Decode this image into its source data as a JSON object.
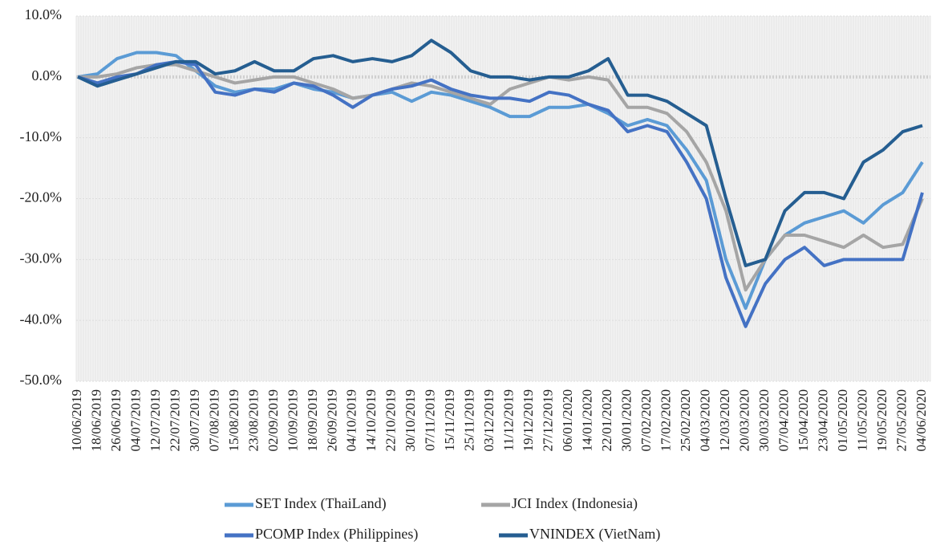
{
  "chart_data": {
    "type": "line",
    "categories": [
      "10/06/2019",
      "18/06/2019",
      "26/06/2019",
      "04/07/2019",
      "12/07/2019",
      "22/07/2019",
      "30/07/2019",
      "07/08/2019",
      "15/08/2019",
      "23/08/2019",
      "02/09/2019",
      "10/09/2019",
      "18/09/2019",
      "26/09/2019",
      "04/10/2019",
      "14/10/2019",
      "22/10/2019",
      "30/10/2019",
      "07/11/2019",
      "15/11/2019",
      "25/11/2019",
      "03/12/2019",
      "11/12/2019",
      "19/12/2019",
      "27/12/2019",
      "06/01/2020",
      "14/01/2020",
      "22/01/2020",
      "30/01/2020",
      "07/02/2020",
      "17/02/2020",
      "25/02/2020",
      "04/03/2020",
      "12/03/2020",
      "20/03/2020",
      "30/03/2020",
      "07/04/2020",
      "15/04/2020",
      "23/04/2020",
      "01/05/2020",
      "11/05/2020",
      "19/05/2020",
      "27/05/2020",
      "04/06/2020"
    ],
    "series": [
      {
        "name": "SET Index (ThaiLand)",
        "color": "#5b9bd5",
        "values": [
          0,
          0.5,
          3,
          4,
          4,
          3.5,
          1,
          -1.5,
          -2.5,
          -2,
          -2,
          -1,
          -2,
          -2.5,
          -3.5,
          -3,
          -2.5,
          -4,
          -2.5,
          -3,
          -4,
          -5,
          -6.5,
          -6.5,
          -5,
          -5,
          -4.5,
          -6,
          -8,
          -7,
          -8,
          -12,
          -17,
          -30,
          -38,
          -30,
          -26,
          -24,
          -23,
          -22,
          -24,
          -21,
          -19,
          -14
        ]
      },
      {
        "name": "JCI Index (Indonesia)",
        "color": "#a5a5a5",
        "values": [
          0,
          0,
          0.5,
          1.5,
          2,
          2,
          1,
          0,
          -1,
          -0.5,
          0,
          0,
          -1,
          -2,
          -3.5,
          -3,
          -2,
          -1,
          -1.5,
          -2.5,
          -3.5,
          -4.5,
          -2,
          -1,
          0,
          -0.5,
          0,
          -0.5,
          -5,
          -5,
          -6,
          -9,
          -14,
          -22,
          -35,
          -30,
          -26,
          -26,
          -27,
          -28,
          -26,
          -28,
          -27.5,
          -20
        ]
      },
      {
        "name": "PCOMP Index (Philippines)",
        "color": "#4472c4",
        "values": [
          0,
          -1,
          0,
          0.5,
          2,
          2.5,
          2,
          -2.5,
          -3,
          -2,
          -2.5,
          -1,
          -1.5,
          -3,
          -5,
          -3,
          -2,
          -1.5,
          -0.5,
          -2,
          -3,
          -3.5,
          -3.5,
          -4,
          -2.5,
          -3,
          -4.5,
          -5.5,
          -9,
          -8,
          -9,
          -14,
          -20,
          -33,
          -41,
          -34,
          -30,
          -28,
          -31,
          -30,
          -30,
          -30,
          -30,
          -19
        ]
      },
      {
        "name": "VNINDEX (VietNam)",
        "color": "#255e91",
        "values": [
          0,
          -1.5,
          -0.5,
          0.5,
          1.5,
          2.5,
          2.5,
          0.5,
          1,
          2.5,
          1,
          1,
          3,
          3.5,
          2.5,
          3,
          2.5,
          3.5,
          6,
          4,
          1,
          0,
          0,
          -0.5,
          0,
          0,
          1,
          3,
          -3,
          -3,
          -4,
          -6,
          -8,
          -20,
          -31,
          -30,
          -22,
          -19,
          -19,
          -20,
          -14,
          -12,
          -9,
          -8
        ]
      }
    ],
    "ylim": [
      -50,
      10
    ],
    "yticks": [
      {
        "value": 10,
        "label": "10.0%"
      },
      {
        "value": 0,
        "label": "0.0%"
      },
      {
        "value": -10,
        "label": "-10.0%"
      },
      {
        "value": -20,
        "label": "-20.0%"
      },
      {
        "value": -30,
        "label": "-30.0%"
      },
      {
        "value": -40,
        "label": "-40.0%"
      },
      {
        "value": -50,
        "label": "-50.0%"
      }
    ],
    "grid": true
  }
}
